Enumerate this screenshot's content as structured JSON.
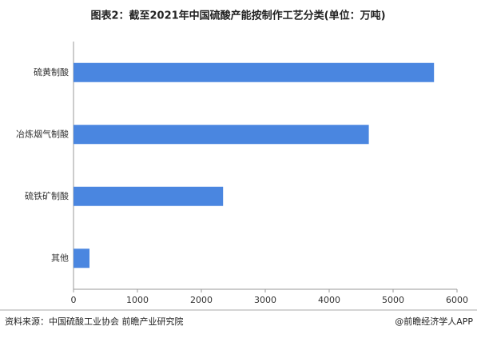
{
  "chart_data": {
    "type": "bar",
    "orientation": "horizontal",
    "title": "图表2：截至2021年中国硫酸产能按制作工艺分类(单位：万吨)",
    "categories": [
      "硫黄制酸",
      "冶炼烟气制酸",
      "硫铁矿制酸",
      "其他"
    ],
    "values": [
      5640,
      4620,
      2340,
      250
    ],
    "color": "#4a86e0",
    "xlim": [
      0,
      6000
    ],
    "xticks": [
      0,
      1000,
      2000,
      3000,
      4000,
      5000,
      6000
    ],
    "source": "资料来源：中国硫酸工业协会 前瞻产业研究院",
    "credit": "@前瞻经济学人APP"
  }
}
